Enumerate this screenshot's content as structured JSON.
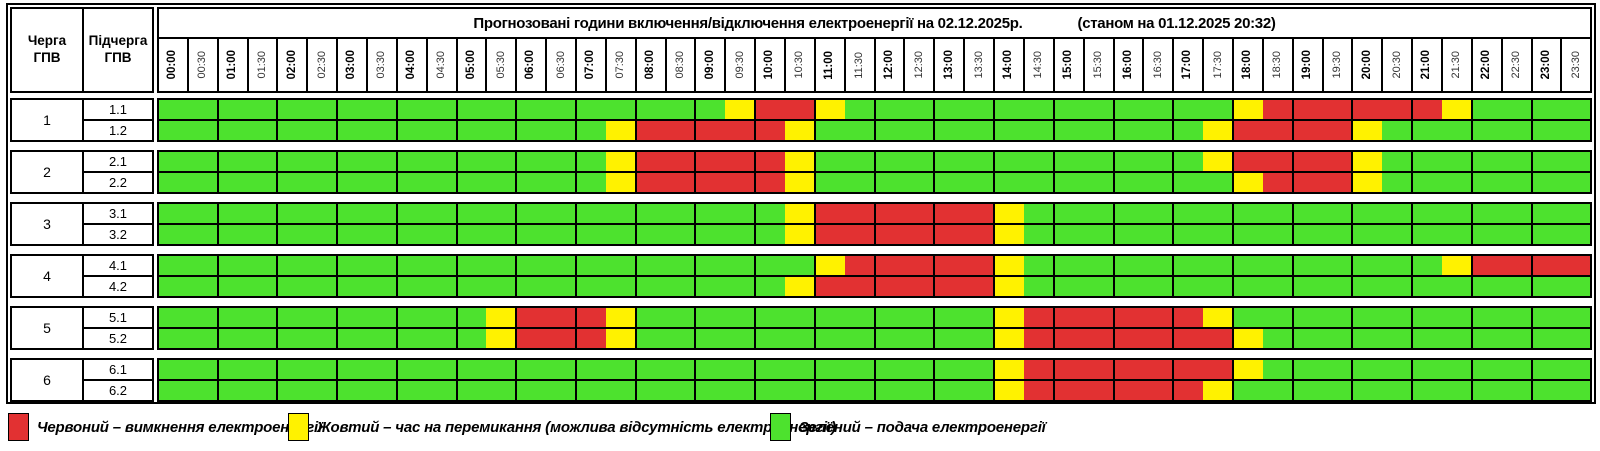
{
  "header": {
    "queue_label": "Черга\nГПВ",
    "subqueue_label": "Підчерга\nГПВ",
    "title_main": "Прогнозовані години включення/відключення електроенергії на 02.12.2025р.",
    "title_note": "(станом на 01.12.2025 20:32)"
  },
  "colors": {
    "green": "#4DE22E",
    "yellow": "#FFF200",
    "red": "#E23132"
  },
  "chart_data": {
    "type": "heatmap",
    "title": "Прогнозовані години включення/відключення електроенергії на 02.12.2025р.",
    "subtitle": "(станом на 01.12.2025 20:32)",
    "x_labels": [
      "00:00",
      "00:30",
      "01:00",
      "01:30",
      "02:00",
      "02:30",
      "03:00",
      "03:30",
      "04:00",
      "04:30",
      "05:00",
      "05:30",
      "06:00",
      "06:30",
      "07:00",
      "07:30",
      "08:00",
      "08:30",
      "09:00",
      "09:30",
      "10:00",
      "10:30",
      "11:00",
      "11:30",
      "12:00",
      "12:30",
      "13:00",
      "13:30",
      "14:00",
      "14:30",
      "15:00",
      "15:30",
      "16:00",
      "16:30",
      "17:00",
      "17:30",
      "18:00",
      "18:30",
      "19:00",
      "19:30",
      "20:00",
      "20:30",
      "21:00",
      "21:30",
      "22:00",
      "22:30",
      "23:00",
      "23:30"
    ],
    "cell_states": {
      "G": "Зелений – подача електроенергії",
      "Y": "Жовтий – час на перемикання (можлива відсутність електроенергії)",
      "R": "Червоний – вимкнення електроенергії"
    },
    "groups": [
      {
        "queue": "1",
        "rows": [
          {
            "label": "1.1",
            "slots": "GGGGGGGGGGGGGGGGGGGYRRYGGGGGGGGGGGGGYRRRRRRYGGGG"
          },
          {
            "label": "1.2",
            "slots": "GGGGGGGGGGGGGGGYRRRRRYGGGGGGGGGGGGGYRRRRYGGGGGGG"
          }
        ]
      },
      {
        "queue": "2",
        "rows": [
          {
            "label": "2.1",
            "slots": "GGGGGGGGGGGGGGGYRRRRRYGGGGGGGGGGGGGYRRRRYGGGGGGG"
          },
          {
            "label": "2.2",
            "slots": "GGGGGGGGGGGGGGGYRRRRRYGGGGGGGGGGGGGGYRRRYGGGGGGG"
          }
        ]
      },
      {
        "queue": "3",
        "rows": [
          {
            "label": "3.1",
            "slots": "GGGGGGGGGGGGGGGGGGGGGYRRRRRRYGGGGGGGGGGGGGGGGGGG"
          },
          {
            "label": "3.2",
            "slots": "GGGGGGGGGGGGGGGGGGGGGYRRRRRRYGGGGGGGGGGGGGGGGGGG"
          }
        ]
      },
      {
        "queue": "4",
        "rows": [
          {
            "label": "4.1",
            "slots": "GGGGGGGGGGGGGGGGGGGGGGYRRRRRYGGGGGGGGGGGGGGYRRRR"
          },
          {
            "label": "4.2",
            "slots": "GGGGGGGGGGGGGGGGGGGGGYRRRRRRYGGGGGGGGGGGGGGGGGGG"
          }
        ]
      },
      {
        "queue": "5",
        "rows": [
          {
            "label": "5.1",
            "slots": "GGGGGGGGGGGYRRRYGGGGGGGGGGGGYRRRRRRYGGGGGGGGGGGG"
          },
          {
            "label": "5.2",
            "slots": "GGGGGGGGGGGYRRRYGGGGGGGGGGGGYRRRRRRRYGGGGGGGGGGG"
          }
        ]
      },
      {
        "queue": "6",
        "rows": [
          {
            "label": "6.1",
            "slots": "GGGGGGGGGGGGGGGGGGGGGGGGGGGGYRRRRRRRYGGGGGGGGGGG"
          },
          {
            "label": "6.2",
            "slots": "GGGGGGGGGGGGGGGGGGGGGGGGGGGGYRRRRRRYGGGGGGGGGGGG"
          }
        ]
      }
    ]
  },
  "legend": {
    "items": [
      {
        "color": "red",
        "label": "Червоний – вимкнення електроенергії"
      },
      {
        "color": "yellow",
        "label": "Жовтий – час на перемикання (можлива відсутність електроенергії)"
      },
      {
        "color": "green",
        "label": "Зелений – подача електроенергії"
      }
    ]
  }
}
